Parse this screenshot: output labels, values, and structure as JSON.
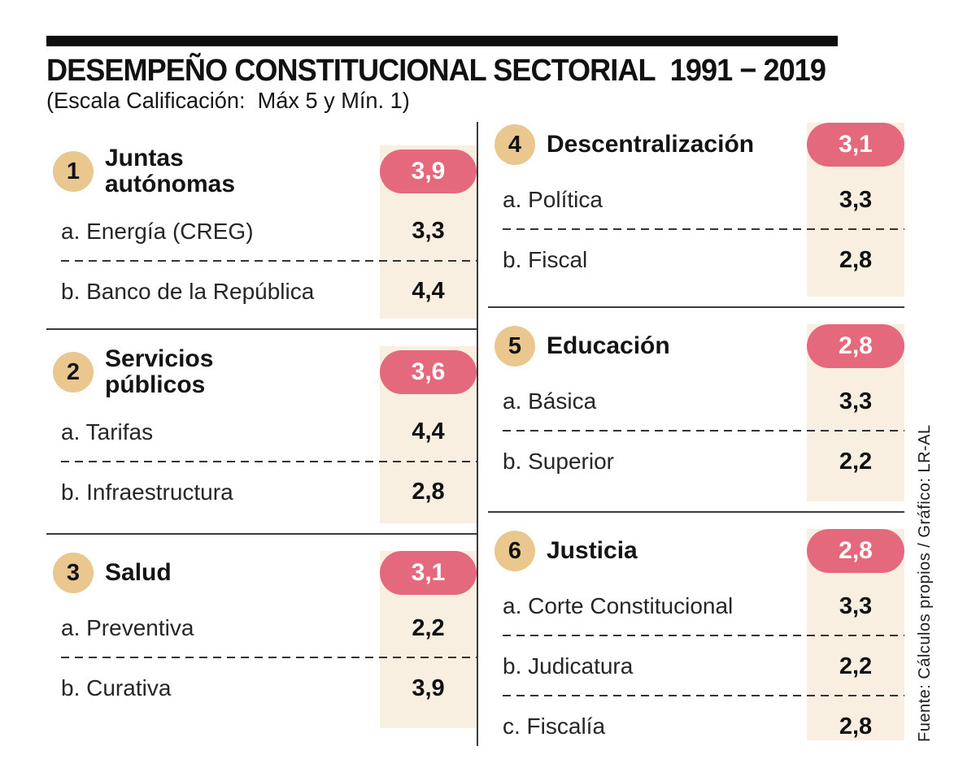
{
  "header": {
    "title": "DESEMPEÑO CONSTITUCIONAL SECTORIAL  1991 − 2019",
    "subtitle": "(Escala Calificación:  Máx 5 y Mín. 1)"
  },
  "source_note": "Fuente: Cálculos propios / Gráfico: LR-AL",
  "colors": {
    "score_pill": "#e5697c",
    "number_badge": "#e9c78e",
    "value_column": "#f8efe1",
    "rule": "#3b3b3b"
  },
  "chart_data": {
    "type": "table",
    "title": "DESEMPEÑO CONSTITUCIONAL SECTORIAL 1991 − 2019",
    "scale_note": "Escala Calificación: Máx 5 y Mín. 1",
    "scale": {
      "max": 5,
      "min": 1
    },
    "sections": [
      {
        "number": "1",
        "name": "Juntas autónomas",
        "score": "3,9",
        "items": [
          {
            "label": "a. Energía (CREG)",
            "value": "3,3"
          },
          {
            "label": "b. Banco de la República",
            "value": "4,4"
          }
        ]
      },
      {
        "number": "2",
        "name": "Servicios públicos",
        "score": "3,6",
        "items": [
          {
            "label": "a. Tarifas",
            "value": "4,4"
          },
          {
            "label": "b. Infraestructura",
            "value": "2,8"
          }
        ]
      },
      {
        "number": "3",
        "name": "Salud",
        "score": "3,1",
        "items": [
          {
            "label": "a. Preventiva",
            "value": "2,2"
          },
          {
            "label": "b. Curativa",
            "value": "3,9"
          }
        ]
      },
      {
        "number": "4",
        "name": "Descentralización",
        "score": "3,1",
        "items": [
          {
            "label": "a. Política",
            "value": "3,3"
          },
          {
            "label": "b. Fiscal",
            "value": "2,8"
          }
        ]
      },
      {
        "number": "5",
        "name": "Educación",
        "score": "2,8",
        "items": [
          {
            "label": "a. Básica",
            "value": "3,3"
          },
          {
            "label": "b. Superior",
            "value": "2,2"
          }
        ]
      },
      {
        "number": "6",
        "name": "Justicia",
        "score": "2,8",
        "items": [
          {
            "label": "a. Corte Constitucional",
            "value": "3,3"
          },
          {
            "label": "b. Judicatura",
            "value": "2,2"
          },
          {
            "label": "c. Fiscalía",
            "value": "2,8"
          }
        ]
      }
    ]
  }
}
